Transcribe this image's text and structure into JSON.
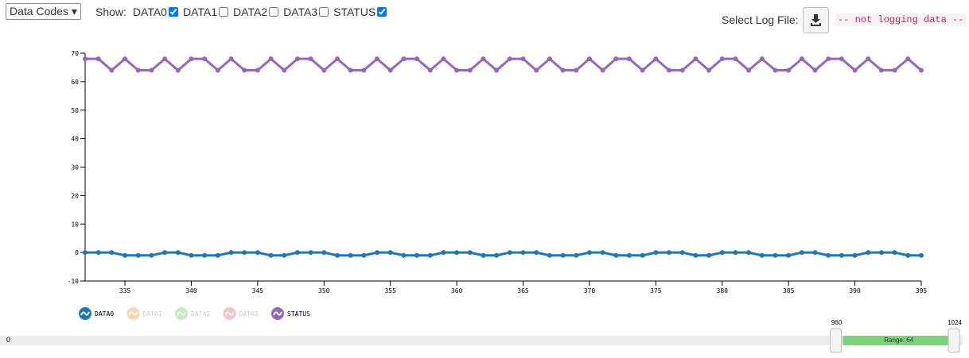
{
  "ui": {
    "select": "Data Codes",
    "show_label": "Show:",
    "checkboxes": [
      {
        "label": "DATA0",
        "checked": true
      },
      {
        "label": "DATA1",
        "checked": false
      },
      {
        "label": "DATA2",
        "checked": false
      },
      {
        "label": "DATA3",
        "checked": false
      },
      {
        "label": "STATUS",
        "checked": true
      }
    ],
    "log_label": "Select Log File:",
    "log_status": "-- not logging data --",
    "slider": {
      "min": 0,
      "low": 960,
      "high": 1024,
      "range_label": "Range: 64"
    }
  },
  "chart_data": {
    "type": "line",
    "x": [
      332,
      333,
      334,
      335,
      336,
      337,
      338,
      339,
      340,
      341,
      342,
      343,
      344,
      345,
      346,
      347,
      348,
      349,
      350,
      351,
      352,
      353,
      354,
      355,
      356,
      357,
      358,
      359,
      360,
      361,
      362,
      363,
      364,
      365,
      366,
      367,
      368,
      369,
      370,
      371,
      372,
      373,
      374,
      375,
      376,
      377,
      378,
      379,
      380,
      381,
      382,
      383,
      384,
      385,
      386,
      387,
      388,
      389,
      390,
      391,
      392,
      393,
      394,
      395
    ],
    "series": [
      {
        "name": "DATA0",
        "color": "#1f77b4",
        "values": [
          0,
          0,
          0,
          -1,
          -1,
          -1,
          0,
          0,
          -1,
          -1,
          -1,
          0,
          0,
          0,
          -1,
          -1,
          0,
          0,
          0,
          -1,
          -1,
          -1,
          0,
          0,
          -1,
          -1,
          -1,
          0,
          0,
          0,
          -1,
          -1,
          0,
          0,
          0,
          -1,
          -1,
          -1,
          0,
          0,
          -1,
          -1,
          -1,
          0,
          0,
          0,
          -1,
          -1,
          0,
          0,
          0,
          -1,
          -1,
          -1,
          0,
          0,
          -1,
          -1,
          -1,
          0,
          0,
          0,
          -1,
          -1
        ]
      },
      {
        "name": "STATUS",
        "color": "#9467bd",
        "values": [
          68,
          68,
          64,
          68,
          64,
          64,
          68,
          64,
          68,
          68,
          64,
          68,
          64,
          64,
          68,
          64,
          68,
          68,
          64,
          68,
          64,
          64,
          68,
          64,
          68,
          68,
          64,
          68,
          64,
          64,
          68,
          64,
          68,
          68,
          64,
          68,
          64,
          64,
          68,
          64,
          68,
          68,
          64,
          68,
          64,
          64,
          68,
          64,
          68,
          68,
          64,
          68,
          64,
          64,
          68,
          64,
          68,
          68,
          64,
          68,
          64,
          64,
          68,
          64
        ]
      }
    ],
    "hidden_series": [
      {
        "name": "DATA1",
        "color": "#fdd5b1"
      },
      {
        "name": "DATA2",
        "color": "#c7e9c0"
      },
      {
        "name": "DATA3",
        "color": "#f7c4c4"
      }
    ],
    "xlim": [
      332,
      395
    ],
    "xticks": [
      335,
      340,
      345,
      350,
      355,
      360,
      365,
      370,
      375,
      380,
      385,
      390,
      395
    ],
    "ylim": [
      -10,
      70
    ],
    "yticks": [
      -10,
      0,
      10,
      20,
      30,
      40,
      50,
      60,
      70
    ],
    "grid": false
  }
}
